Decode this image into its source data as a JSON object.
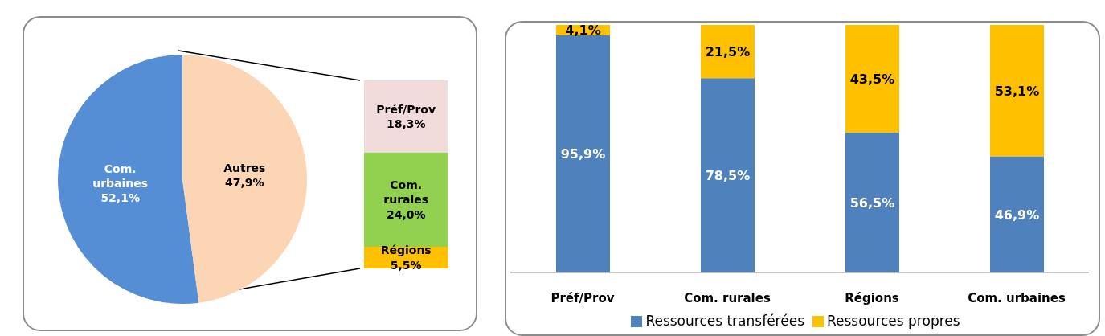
{
  "chart_data": [
    {
      "type": "pie",
      "categories": [
        "Com. urbaines",
        "Autres"
      ],
      "values": [
        52.1,
        47.9
      ],
      "colors": [
        "#558ed5",
        "#fcd5b5"
      ],
      "value_labels": [
        "52,1%",
        "47,9%"
      ]
    },
    {
      "type": "bar",
      "stacked": true,
      "categories": [
        null
      ],
      "series": [
        {
          "name": "Régions",
          "color": "#ffc000",
          "values": [
            5.5
          ],
          "value_labels": [
            "5,5%"
          ]
        },
        {
          "name": "Com. rurales",
          "color": "#92d050",
          "values": [
            24.0
          ],
          "value_labels": [
            "24,0%"
          ]
        },
        {
          "name": "Préf/Prov",
          "color": "#f2dcdb",
          "values": [
            18.3
          ],
          "value_labels": [
            "18,3%"
          ]
        }
      ]
    },
    {
      "type": "bar",
      "stacked": true,
      "legend": "bottom",
      "categories": [
        "Préf/Prov",
        "Com. rurales",
        "Régions",
        "Com. urbaines"
      ],
      "series": [
        {
          "name": "Ressources transférées",
          "color": "#4f81bd",
          "values": [
            95.9,
            78.5,
            56.5,
            46.9
          ],
          "value_labels": [
            "95,9%",
            "78,5%",
            "56,5%",
            "46,9%"
          ]
        },
        {
          "name": "Ressources propres",
          "color": "#ffc000",
          "values": [
            4.1,
            21.5,
            43.5,
            53.1
          ],
          "value_labels": [
            "4,1%",
            "21,5%",
            "43,5%",
            "53,1%"
          ]
        }
      ]
    }
  ]
}
